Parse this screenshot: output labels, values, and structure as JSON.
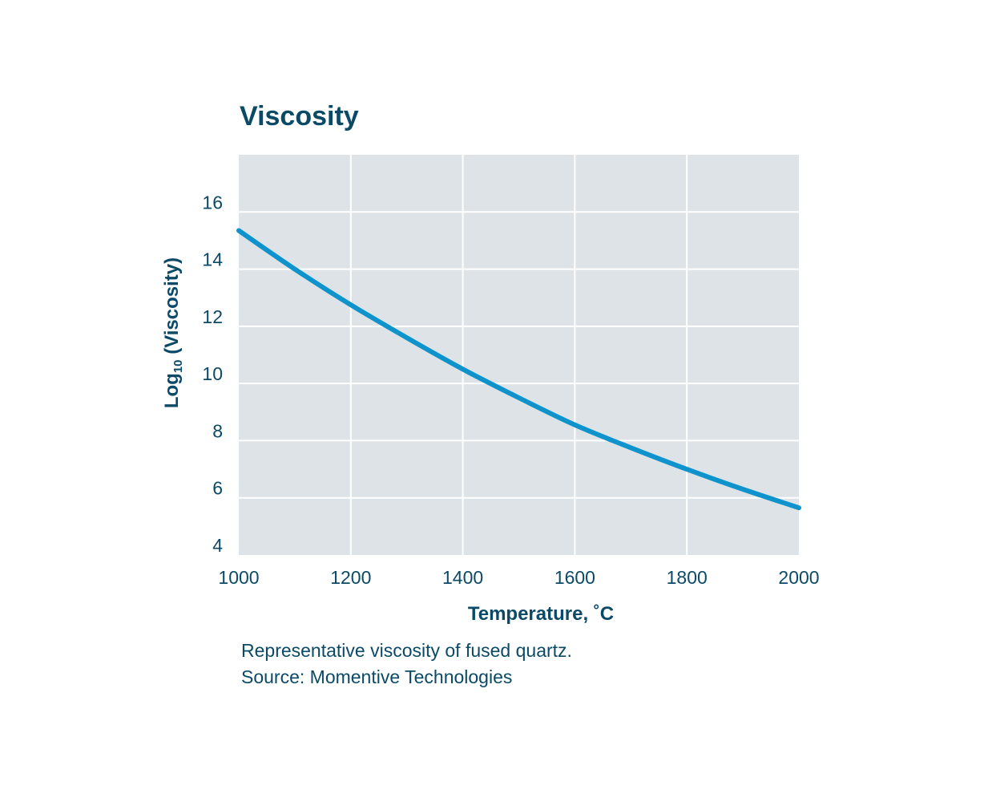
{
  "chart_data": {
    "type": "line",
    "title": "Viscosity",
    "xlabel": "Temperature, ˚C",
    "ylabel": {
      "main": "Log",
      "subscript": "10",
      "rest": " (Viscosity)"
    },
    "xlim": [
      1000,
      2000
    ],
    "ylim": [
      4,
      18
    ],
    "x_ticks": [
      1000,
      1200,
      1400,
      1600,
      1800,
      2000
    ],
    "y_ticks": [
      4,
      6,
      8,
      10,
      12,
      14,
      16
    ],
    "grid": true,
    "legend": "none",
    "series": [
      {
        "x": [
          1000,
          1100,
          1200,
          1300,
          1400,
          1500,
          1600,
          1700,
          1800,
          1900,
          2000
        ],
        "y": [
          15.35,
          14.0,
          12.75,
          11.6,
          10.5,
          9.5,
          8.55,
          7.75,
          7.0,
          6.3,
          5.65
        ]
      }
    ]
  },
  "caption": {
    "line1": "Representative viscosity of fused quartz.",
    "line2": "Source: Momentive Technologies"
  },
  "colors": {
    "plot_background": "#dde3e6",
    "grid": "#ffffff",
    "line": "#0f93cc",
    "text": "#0b4a66"
  }
}
